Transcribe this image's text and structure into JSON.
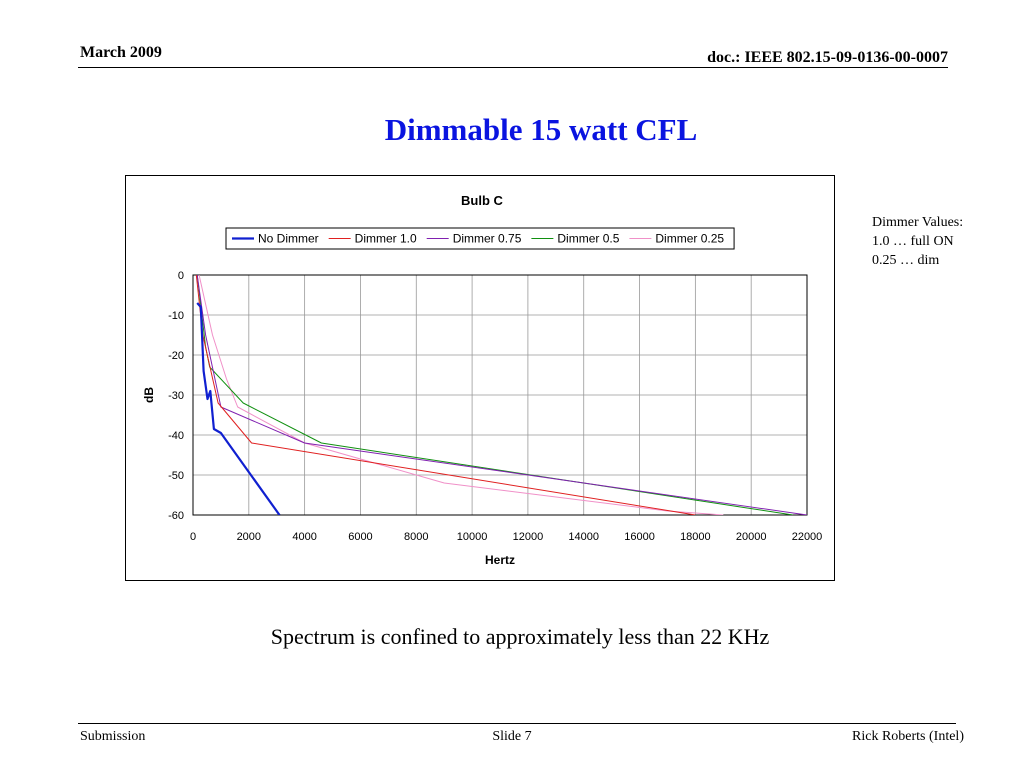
{
  "header": {
    "date": "March 2009",
    "doc": "doc.: IEEE 802.15-09-0136-00-0007"
  },
  "slide_title": "Dimmable 15 watt CFL",
  "side_note": {
    "line1": "Dimmer Values:",
    "line2": "1.0 … full ON",
    "line3": "0.25 … dim"
  },
  "caption": "Spectrum is confined to approximately less than 22 KHz",
  "footer": {
    "left": "Submission",
    "center": "Slide 7",
    "right": "Rick Roberts (Intel)"
  },
  "chart_data": {
    "type": "line",
    "title": "Bulb C",
    "xlabel": "Hertz",
    "ylabel": "dB",
    "xlim": [
      0,
      22000
    ],
    "ylim": [
      -60,
      0
    ],
    "x_ticks": [
      0,
      2000,
      4000,
      6000,
      8000,
      10000,
      12000,
      14000,
      16000,
      18000,
      20000,
      22000
    ],
    "y_ticks": [
      0,
      -10,
      -20,
      -30,
      -40,
      -50,
      -60
    ],
    "grid": "horizontal and vertical",
    "legend_position": "top",
    "series": [
      {
        "name": "No Dimmer",
        "color": "#1020d0",
        "width": 2.2,
        "points": [
          [
            150,
            -7
          ],
          [
            280,
            -8
          ],
          [
            380,
            -24
          ],
          [
            520,
            -31
          ],
          [
            620,
            -29
          ],
          [
            750,
            -38.5
          ],
          [
            1000,
            -39.5
          ],
          [
            3100,
            -60
          ]
        ]
      },
      {
        "name": "Dimmer 1.0",
        "color": "#e02020",
        "width": 1,
        "points": [
          [
            120,
            0
          ],
          [
            350,
            -15
          ],
          [
            900,
            -32
          ],
          [
            2100,
            -42
          ],
          [
            18000,
            -60
          ]
        ]
      },
      {
        "name": "Dimmer 0.75",
        "color": "#8020b0",
        "width": 1,
        "points": [
          [
            150,
            0
          ],
          [
            450,
            -15
          ],
          [
            1000,
            -33
          ],
          [
            4000,
            -42
          ],
          [
            22000,
            -60
          ]
        ]
      },
      {
        "name": "Dimmer 0.5",
        "color": "#109010",
        "width": 1,
        "points": [
          [
            150,
            0
          ],
          [
            450,
            -18
          ],
          [
            600,
            -23
          ],
          [
            1800,
            -32
          ],
          [
            4600,
            -42
          ],
          [
            21500,
            -60
          ]
        ]
      },
      {
        "name": "Dimmer 0.25",
        "color": "#f090c8",
        "width": 1,
        "points": [
          [
            220,
            0
          ],
          [
            700,
            -15
          ],
          [
            1200,
            -26
          ],
          [
            1600,
            -33
          ],
          [
            4000,
            -42
          ],
          [
            9000,
            -52
          ],
          [
            17000,
            -59
          ],
          [
            19000,
            -60
          ]
        ]
      }
    ]
  }
}
